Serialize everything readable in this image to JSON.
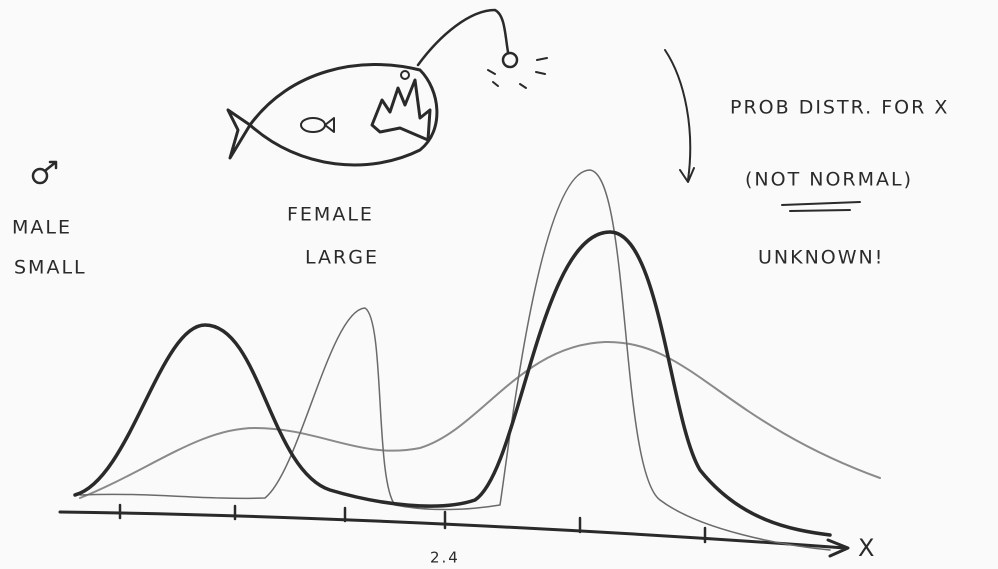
{
  "annotations": {
    "title": "PROB DISTR. FOR X",
    "subtitle": "(NOT NORMAL)",
    "note": "UNKNOWN!"
  },
  "labels": {
    "male": "MALE",
    "small": "SMALL",
    "female": "FEMALE",
    "large": "LARGE"
  },
  "axis": {
    "tick_label": "2.4",
    "label": "X"
  }
}
